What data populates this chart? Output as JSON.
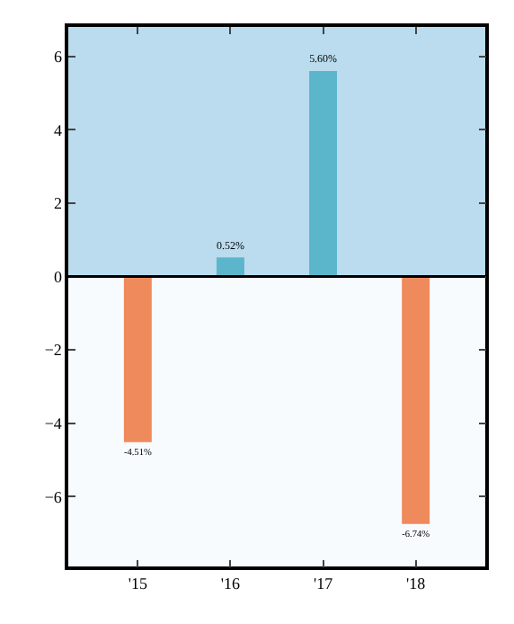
{
  "chart_data": {
    "type": "bar",
    "categories": [
      "'15",
      "'16",
      "'17",
      "'18"
    ],
    "series": [
      {
        "colors": [
          "#ef8a5c",
          "#5cb6cb",
          "#5cb6cb",
          "#ef8a5c"
        ],
        "values": [
          -4.51,
          0.52,
          5.6,
          -6.74
        ],
        "value_labels": [
          "-4.51%",
          "0.52%",
          "5.60%",
          "-6.74%"
        ]
      }
    ],
    "ylim": [
      -7.9,
      6.8
    ],
    "yticks": [
      {
        "value": -6,
        "label": "−6"
      },
      {
        "value": -4,
        "label": "−4"
      },
      {
        "value": -2,
        "label": "−2"
      },
      0,
      2,
      4,
      6
    ],
    "bands": [
      {
        "axis": "y",
        "from": 0,
        "to": 6.8,
        "color": "#badcee"
      }
    ],
    "ref_lines": [
      {
        "axis": "y",
        "value": 0,
        "color": "#000000"
      }
    ],
    "grid": false
  }
}
